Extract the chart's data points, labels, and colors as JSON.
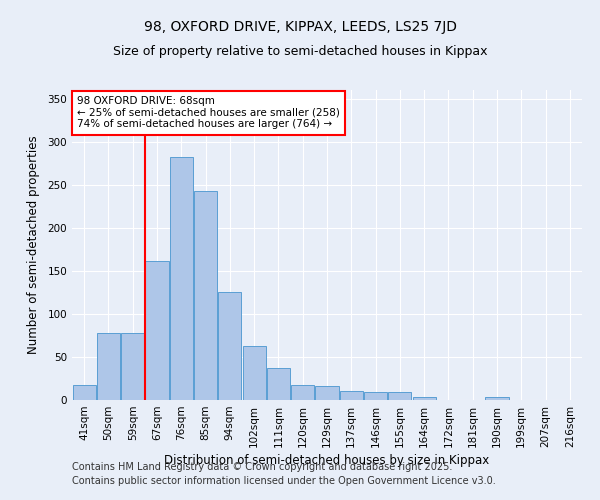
{
  "title": "98, OXFORD DRIVE, KIPPAX, LEEDS, LS25 7JD",
  "subtitle": "Size of property relative to semi-detached houses in Kippax",
  "xlabel": "Distribution of semi-detached houses by size in Kippax",
  "ylabel": "Number of semi-detached properties",
  "bins": [
    "41sqm",
    "50sqm",
    "59sqm",
    "67sqm",
    "76sqm",
    "85sqm",
    "94sqm",
    "102sqm",
    "111sqm",
    "120sqm",
    "129sqm",
    "137sqm",
    "146sqm",
    "155sqm",
    "164sqm",
    "172sqm",
    "181sqm",
    "190sqm",
    "199sqm",
    "207sqm",
    "216sqm"
  ],
  "values": [
    18,
    78,
    78,
    162,
    282,
    243,
    125,
    63,
    37,
    17,
    16,
    10,
    9,
    9,
    4,
    0,
    0,
    4,
    0,
    0,
    0
  ],
  "bar_color": "#aec6e8",
  "bar_edge_color": "#5a9fd4",
  "red_line_bin_index": 3,
  "annotation_text": "98 OXFORD DRIVE: 68sqm\n← 25% of semi-detached houses are smaller (258)\n74% of semi-detached houses are larger (764) →",
  "ylim": [
    0,
    360
  ],
  "yticks": [
    0,
    50,
    100,
    150,
    200,
    250,
    300,
    350
  ],
  "footer1": "Contains HM Land Registry data © Crown copyright and database right 2025.",
  "footer2": "Contains public sector information licensed under the Open Government Licence v3.0.",
  "bg_color": "#e8eef8",
  "title_fontsize": 10,
  "subtitle_fontsize": 9,
  "axis_label_fontsize": 8.5,
  "tick_fontsize": 7.5,
  "footer_fontsize": 7
}
